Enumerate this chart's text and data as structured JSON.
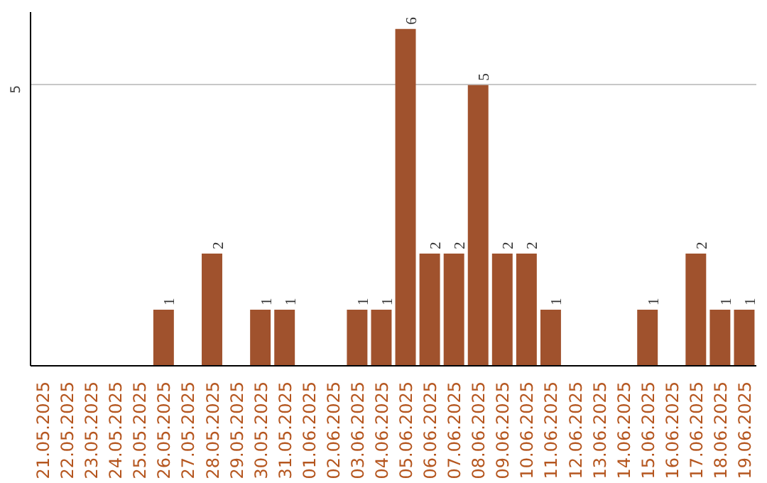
{
  "chart_data": {
    "type": "bar",
    "categories": [
      "21.05.2025",
      "22.05.2025",
      "23.05.2025",
      "24.05.2025",
      "25.05.2025",
      "26.05.2025",
      "27.05.2025",
      "28.05.2025",
      "29.05.2025",
      "30.05.2025",
      "31.05.2025",
      "01.06.2025",
      "02.06.2025",
      "03.06.2025",
      "04.06.2025",
      "05.06.2025",
      "06.06.2025",
      "07.06.2025",
      "08.06.2025",
      "09.06.2025",
      "10.06.2025",
      "11.06.2025",
      "12.06.2025",
      "13.06.2025",
      "14.06.2025",
      "15.06.2025",
      "16.06.2025",
      "17.06.2025",
      "18.06.2025",
      "19.06.2025"
    ],
    "values": [
      0,
      0,
      0,
      0,
      0,
      1,
      0,
      2,
      0,
      1,
      1,
      0,
      0,
      1,
      1,
      6,
      2,
      2,
      5,
      2,
      2,
      1,
      0,
      0,
      0,
      1,
      0,
      2,
      1,
      1
    ],
    "value_labels": [
      null,
      null,
      null,
      null,
      null,
      "1",
      null,
      "2",
      null,
      "1",
      "1",
      null,
      null,
      "1",
      "1",
      "6",
      "2",
      "2",
      "5",
      "2",
      "2",
      "1",
      null,
      null,
      null,
      "1",
      null,
      "2",
      "1",
      "1"
    ],
    "color": "#a0522d",
    "ylim": [
      0,
      6.3
    ],
    "yticks": [
      5
    ],
    "grid": "y"
  }
}
